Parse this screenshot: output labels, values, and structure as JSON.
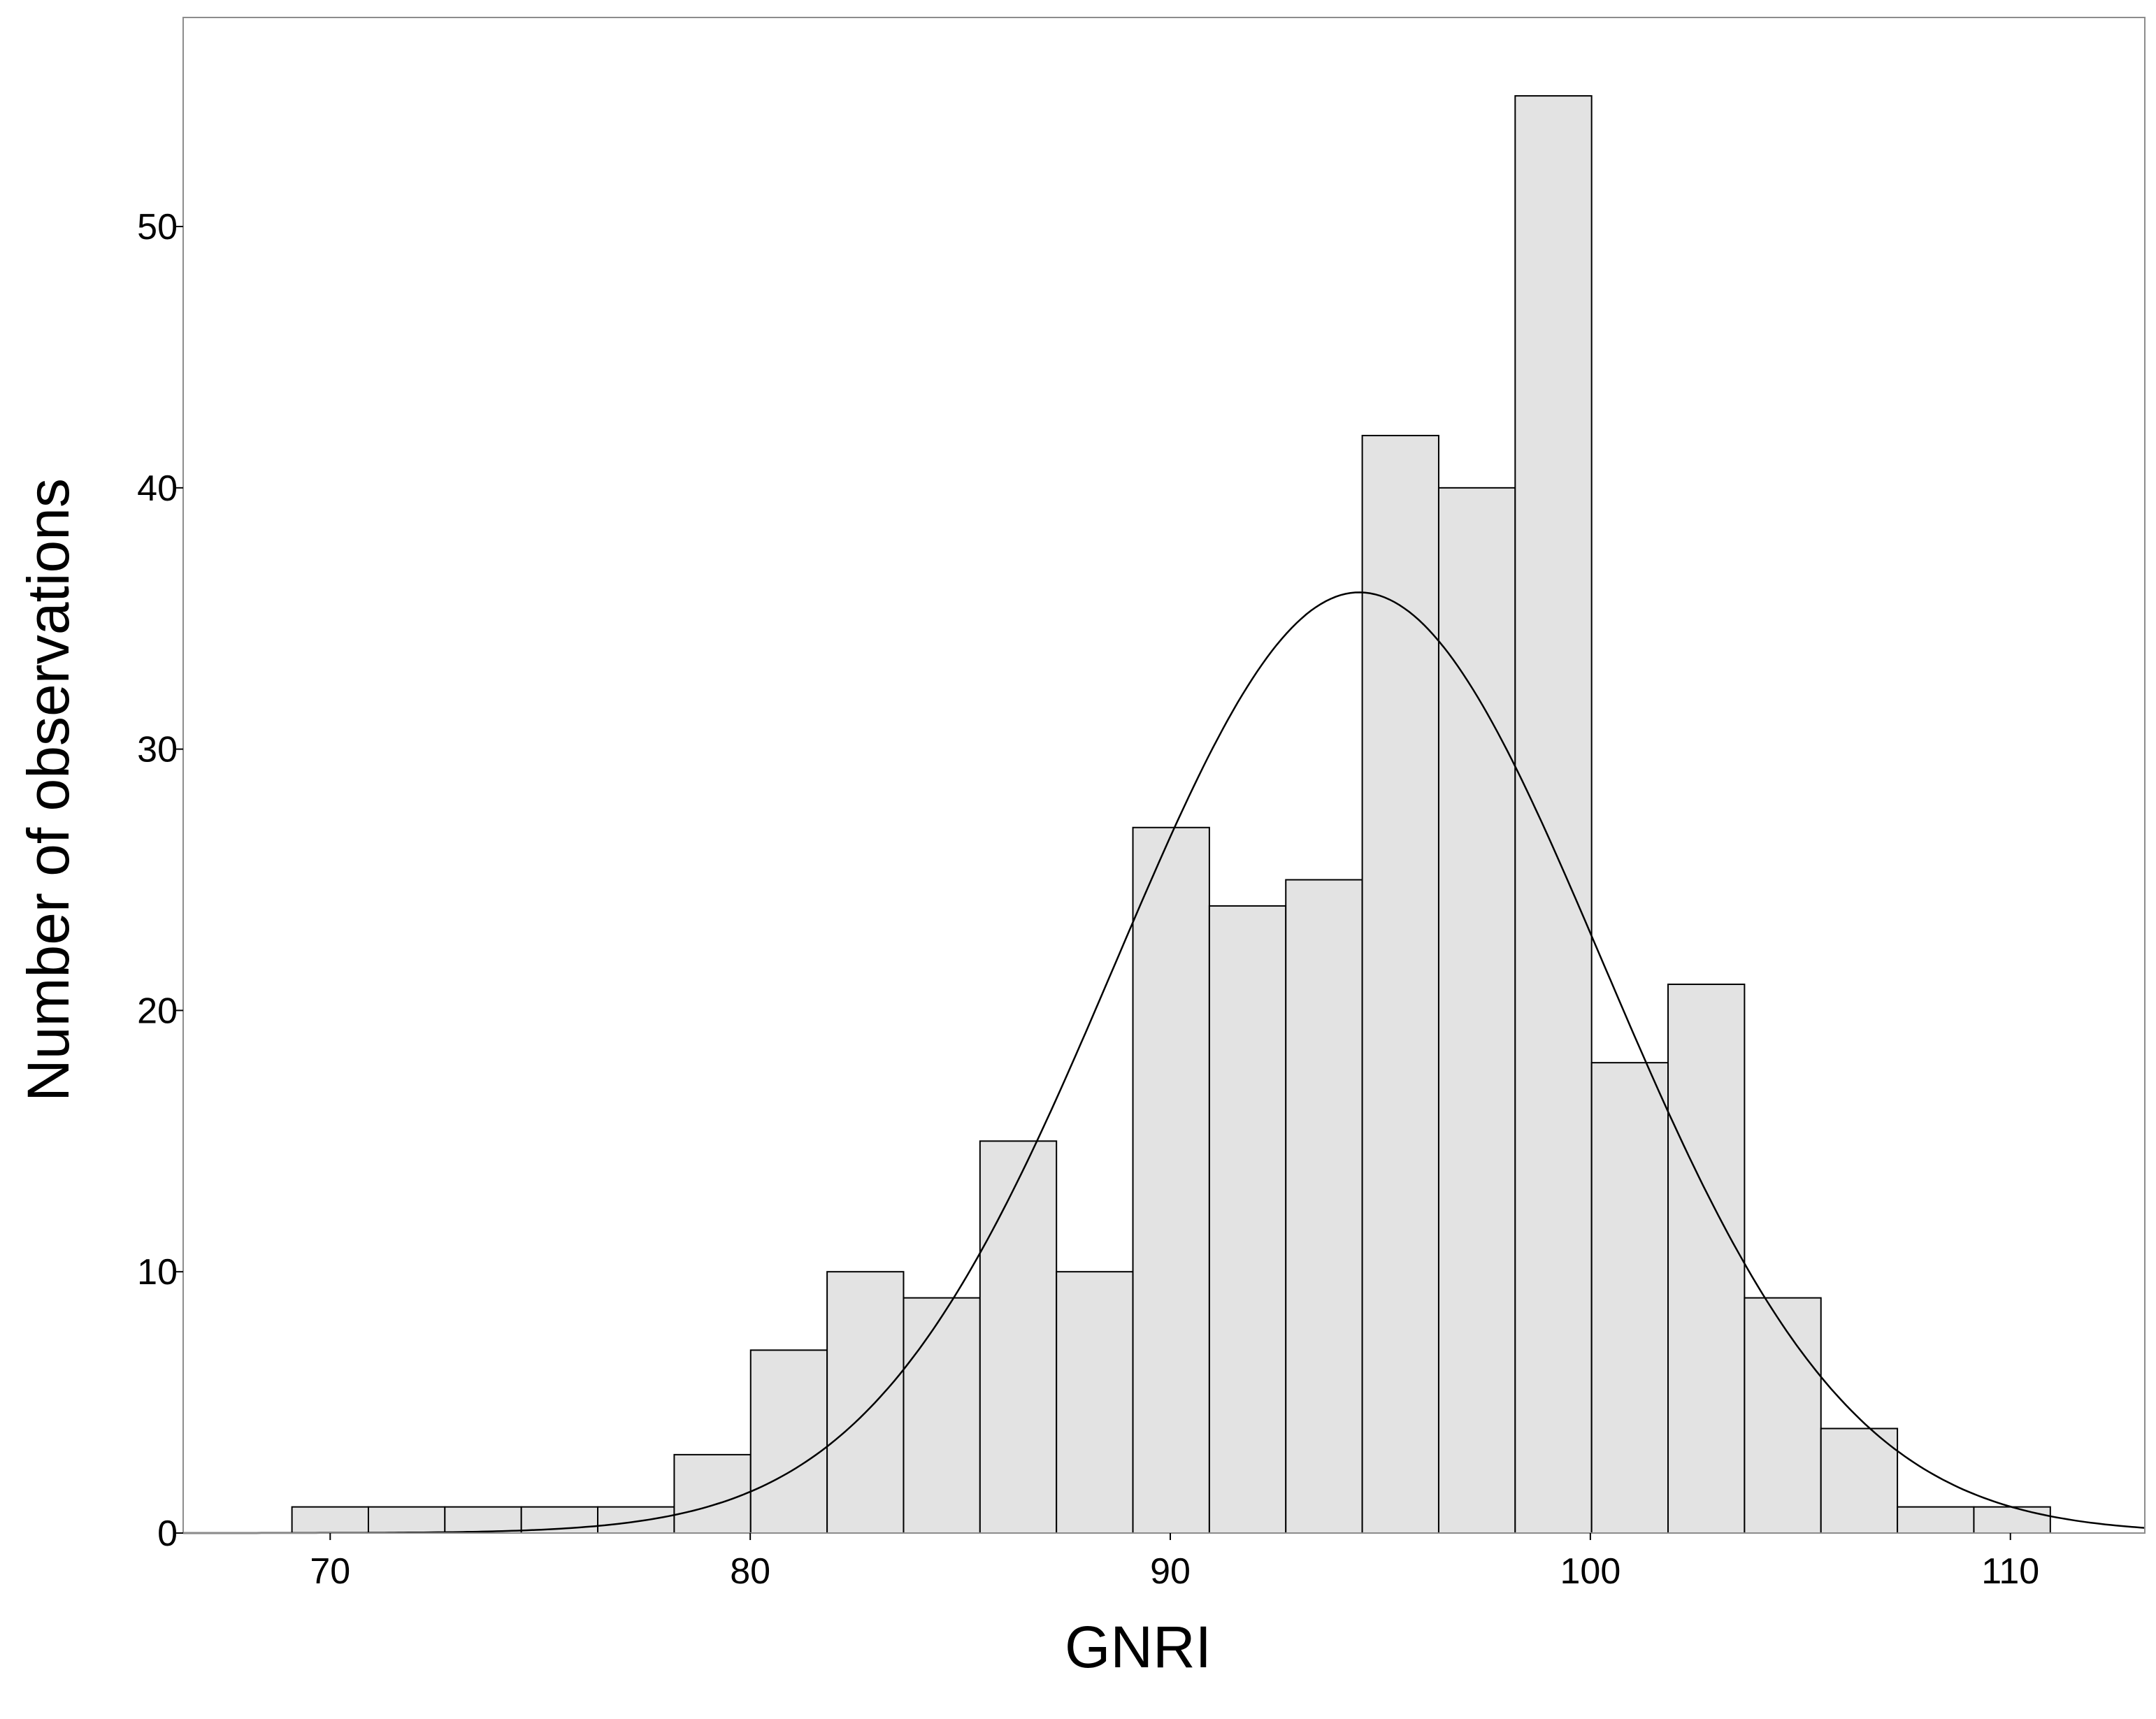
{
  "chart_data": {
    "type": "bar",
    "subtype": "histogram_with_normal_curve",
    "xlabel": "GNRI",
    "ylabel": "Number of observations",
    "xlim": [
      66.5,
      113.2
    ],
    "ylim": [
      0,
      58
    ],
    "xticks": [
      70,
      80,
      90,
      100,
      110
    ],
    "yticks": [
      0,
      10,
      20,
      30,
      40,
      50
    ],
    "bin_width": 1.82,
    "bins": [
      {
        "start": 69.09,
        "end": 70.91,
        "count": 1
      },
      {
        "start": 70.91,
        "end": 72.73,
        "count": 1
      },
      {
        "start": 72.73,
        "end": 74.55,
        "count": 1
      },
      {
        "start": 74.55,
        "end": 76.37,
        "count": 1
      },
      {
        "start": 76.37,
        "end": 78.19,
        "count": 1
      },
      {
        "start": 78.19,
        "end": 80.01,
        "count": 3
      },
      {
        "start": 80.01,
        "end": 81.83,
        "count": 7
      },
      {
        "start": 81.83,
        "end": 83.65,
        "count": 10
      },
      {
        "start": 83.65,
        "end": 85.47,
        "count": 9
      },
      {
        "start": 85.47,
        "end": 87.29,
        "count": 15
      },
      {
        "start": 87.29,
        "end": 89.11,
        "count": 10
      },
      {
        "start": 89.11,
        "end": 90.93,
        "count": 27
      },
      {
        "start": 90.93,
        "end": 92.75,
        "count": 24
      },
      {
        "start": 92.75,
        "end": 94.57,
        "count": 25
      },
      {
        "start": 94.57,
        "end": 96.39,
        "count": 42
      },
      {
        "start": 96.39,
        "end": 98.21,
        "count": 40
      },
      {
        "start": 98.21,
        "end": 100.03,
        "count": 55
      },
      {
        "start": 100.03,
        "end": 101.85,
        "count": 18
      },
      {
        "start": 101.85,
        "end": 103.67,
        "count": 21
      },
      {
        "start": 103.67,
        "end": 105.49,
        "count": 9
      },
      {
        "start": 105.49,
        "end": 107.31,
        "count": 4
      },
      {
        "start": 107.31,
        "end": 109.13,
        "count": 1
      },
      {
        "start": 109.13,
        "end": 110.95,
        "count": 1
      }
    ],
    "normal_curve": {
      "mean": 94.5,
      "sd": 5.8,
      "peak": 36
    },
    "grid": false,
    "colors": {
      "bar_fill": "#e3e3e3",
      "bar_edge": "#000000",
      "curve": "#000000",
      "frame": "#8c8c8c"
    }
  }
}
